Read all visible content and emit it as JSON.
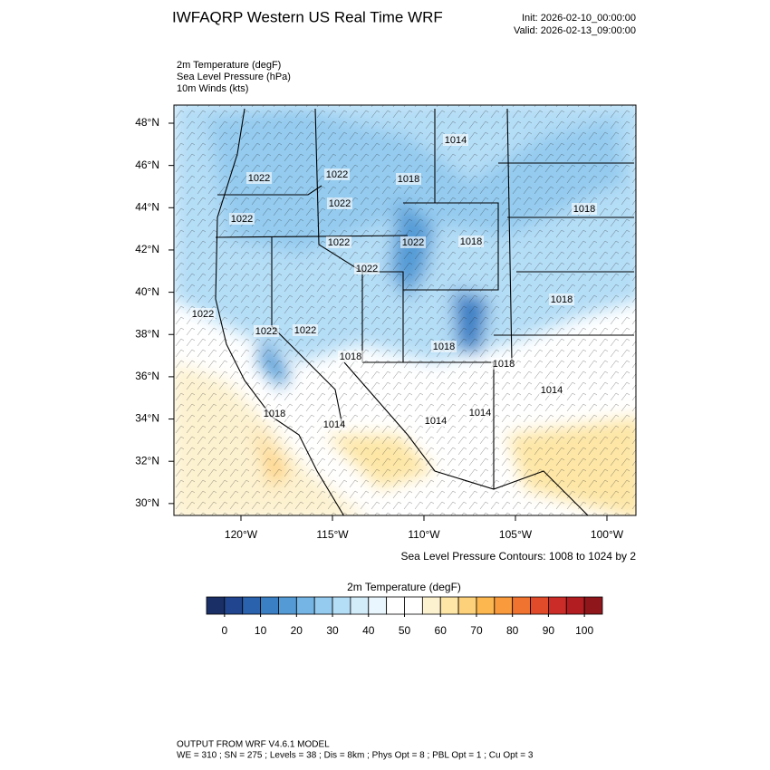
{
  "header": {
    "title": "IWFAQRP Western US Real Time WRF",
    "init": "Init: 2026-02-10_00:00:00",
    "valid": "Valid: 2026-02-13_09:00:00"
  },
  "fields": [
    "2m Temperature   (degF)",
    "Sea Level Pressure   (hPa)",
    "10m Winds   (kts)"
  ],
  "map": {
    "lat_labels": [
      "48°N",
      "46°N",
      "44°N",
      "42°N",
      "40°N",
      "38°N",
      "36°N",
      "34°N",
      "32°N",
      "30°N"
    ],
    "lon_labels": [
      "120°W",
      "115°W",
      "110°W",
      "105°W",
      "100°W"
    ],
    "contour_labels": [
      "1014",
      "1022",
      "1022",
      "1018",
      "1022",
      "1022",
      "1018",
      "1022",
      "1022",
      "1018",
      "1022",
      "1018",
      "1022",
      "1022",
      "1022",
      "1018",
      "1018",
      "1018",
      "1014",
      "1018",
      "1014",
      "1014",
      "1014"
    ]
  },
  "contour_note": "Sea Level Pressure Contours: 1008 to 1024 by 2",
  "colorbar": {
    "title": "2m Temperature  (degF)",
    "lim": [
      -5,
      105
    ],
    "ticks": [
      0,
      10,
      20,
      30,
      40,
      50,
      60,
      70,
      80,
      90,
      100
    ],
    "colors": [
      "#1a2f66",
      "#21468f",
      "#2a62ad",
      "#3a7fc4",
      "#549bd6",
      "#74b5e5",
      "#94cbef",
      "#b4ddf6",
      "#d2ecfa",
      "#eaf6fd",
      "#ffffff",
      "#ffffff",
      "#fdf2d0",
      "#fde6a6",
      "#fdd17a",
      "#fcb74f",
      "#f99a3c",
      "#f0732f",
      "#e24b2a",
      "#cc2c27",
      "#b21d22",
      "#8f161b"
    ]
  },
  "footer": {
    "line1": "OUTPUT FROM WRF V4.6.1 MODEL",
    "line2": "WE = 310 ; SN = 275 ; Levels = 38 ; Dis = 8km ; Phys Opt = 8 ; PBL Opt = 1 ; Cu Opt = 3"
  }
}
